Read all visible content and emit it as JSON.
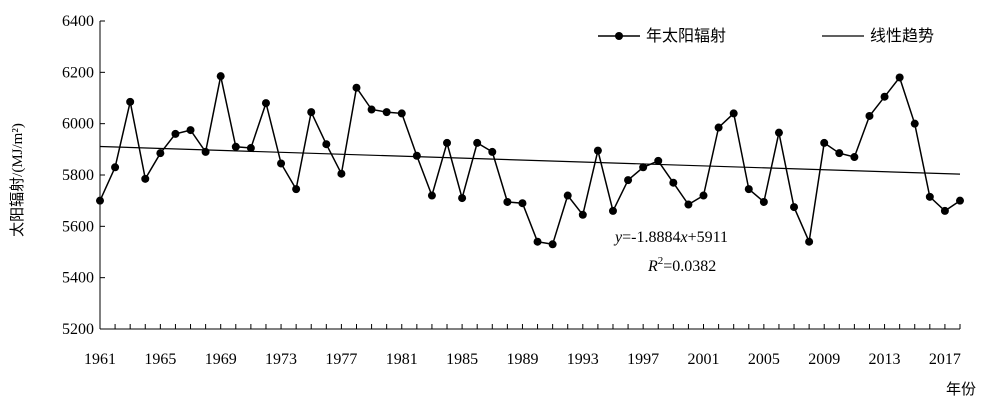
{
  "chart_data": {
    "type": "line",
    "title": "",
    "xlabel": "年份",
    "ylabel": "太阳辐射/(MJ/m²)",
    "xlim": [
      1961,
      2018
    ],
    "ylim": [
      5200,
      6400
    ],
    "y_ticks": [
      5200,
      5400,
      5600,
      5800,
      6000,
      6200,
      6400
    ],
    "x_ticks": [
      1961,
      1965,
      1969,
      1973,
      1977,
      1981,
      1985,
      1989,
      1993,
      1997,
      2001,
      2005,
      2009,
      2013,
      2017
    ],
    "grid": false,
    "legend_position": "top-right",
    "series": [
      {
        "name": "年太阳辐射",
        "style": "line-with-markers",
        "color": "#000000",
        "x": [
          1961,
          1962,
          1963,
          1964,
          1965,
          1966,
          1967,
          1968,
          1969,
          1970,
          1971,
          1972,
          1973,
          1974,
          1975,
          1976,
          1977,
          1978,
          1979,
          1980,
          1981,
          1982,
          1983,
          1984,
          1985,
          1986,
          1987,
          1988,
          1989,
          1990,
          1991,
          1992,
          1993,
          1994,
          1995,
          1996,
          1997,
          1998,
          1999,
          2000,
          2001,
          2002,
          2003,
          2004,
          2005,
          2006,
          2007,
          2008,
          2009,
          2010,
          2011,
          2012,
          2013,
          2014,
          2015,
          2016,
          2017,
          2018
        ],
        "values": [
          5700,
          5830,
          6085,
          5785,
          5885,
          5960,
          5975,
          5890,
          6185,
          5910,
          5905,
          6080,
          5845,
          5745,
          6045,
          5920,
          5805,
          6140,
          6055,
          6045,
          6040,
          5875,
          5720,
          5925,
          5710,
          5925,
          5890,
          5695,
          5690,
          5540,
          5530,
          5720,
          5645,
          5895,
          5660,
          5780,
          5830,
          5855,
          5770,
          5685,
          5720,
          5985,
          6040,
          5745,
          5695,
          5965,
          5675,
          5540,
          5925,
          5885,
          5870,
          6030,
          6105,
          6180,
          6000,
          5715,
          5660,
          5700
        ]
      },
      {
        "name": "线性趋势",
        "style": "line",
        "color": "#000000",
        "x": [
          1961,
          2018
        ],
        "values": [
          5911,
          5803.4
        ]
      }
    ],
    "annotations": {
      "equation": {
        "y_var": "y",
        "eq_sign": "=-1.8884",
        "x_var": "x",
        "rest": "+5911"
      },
      "r2": {
        "r_var": "R",
        "sup": "2",
        "rest": "=0.0382"
      }
    }
  }
}
